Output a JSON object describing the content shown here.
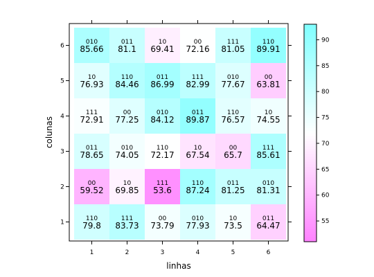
{
  "chart_data": {
    "type": "heatmap",
    "xlabel": "linhas",
    "ylabel": "colunas",
    "x_ticks": [
      "1",
      "2",
      "3",
      "4",
      "5",
      "6"
    ],
    "y_ticks": [
      "1",
      "2",
      "3",
      "4",
      "5",
      "6"
    ],
    "colorbar": {
      "range": [
        51,
        93
      ],
      "ticks": [
        55,
        60,
        65,
        70,
        75,
        80,
        85,
        90
      ],
      "low_color": "#ff80ff",
      "mid_color": "#ffffff",
      "high_color": "#80ffff",
      "mid_value": 72
    },
    "cells": [
      {
        "x": 1,
        "y": 6,
        "code": "010",
        "value": 85.66
      },
      {
        "x": 2,
        "y": 6,
        "code": "011",
        "value": 81.1
      },
      {
        "x": 3,
        "y": 6,
        "code": "10",
        "value": 69.41
      },
      {
        "x": 4,
        "y": 6,
        "code": "00",
        "value": 72.16
      },
      {
        "x": 5,
        "y": 6,
        "code": "111",
        "value": 81.05
      },
      {
        "x": 6,
        "y": 6,
        "code": "110",
        "value": 89.91
      },
      {
        "x": 1,
        "y": 5,
        "code": "10",
        "value": 76.93
      },
      {
        "x": 2,
        "y": 5,
        "code": "110",
        "value": 84.46
      },
      {
        "x": 3,
        "y": 5,
        "code": "011",
        "value": 86.99
      },
      {
        "x": 4,
        "y": 5,
        "code": "111",
        "value": 82.99
      },
      {
        "x": 5,
        "y": 5,
        "code": "010",
        "value": 77.67
      },
      {
        "x": 6,
        "y": 5,
        "code": "00",
        "value": 63.81
      },
      {
        "x": 1,
        "y": 4,
        "code": "111",
        "value": 72.91
      },
      {
        "x": 2,
        "y": 4,
        "code": "00",
        "value": 77.25
      },
      {
        "x": 3,
        "y": 4,
        "code": "010",
        "value": 84.12
      },
      {
        "x": 4,
        "y": 4,
        "code": "011",
        "value": 89.87
      },
      {
        "x": 5,
        "y": 4,
        "code": "110",
        "value": 76.57
      },
      {
        "x": 6,
        "y": 4,
        "code": "10",
        "value": 74.55
      },
      {
        "x": 1,
        "y": 3,
        "code": "011",
        "value": 78.65
      },
      {
        "x": 2,
        "y": 3,
        "code": "010",
        "value": 74.05
      },
      {
        "x": 3,
        "y": 3,
        "code": "110",
        "value": 72.17
      },
      {
        "x": 4,
        "y": 3,
        "code": "10",
        "value": 67.54
      },
      {
        "x": 5,
        "y": 3,
        "code": "00",
        "value": 65.7
      },
      {
        "x": 6,
        "y": 3,
        "code": "111",
        "value": 85.61
      },
      {
        "x": 1,
        "y": 2,
        "code": "00",
        "value": 59.52
      },
      {
        "x": 2,
        "y": 2,
        "code": "10",
        "value": 69.85
      },
      {
        "x": 3,
        "y": 2,
        "code": "111",
        "value": 53.6
      },
      {
        "x": 4,
        "y": 2,
        "code": "110",
        "value": 87.24
      },
      {
        "x": 5,
        "y": 2,
        "code": "011",
        "value": 81.25
      },
      {
        "x": 6,
        "y": 2,
        "code": "010",
        "value": 81.31
      },
      {
        "x": 1,
        "y": 1,
        "code": "110",
        "value": 79.8
      },
      {
        "x": 2,
        "y": 1,
        "code": "111",
        "value": 83.73
      },
      {
        "x": 3,
        "y": 1,
        "code": "00",
        "value": 73.79
      },
      {
        "x": 4,
        "y": 1,
        "code": "010",
        "value": 77.93
      },
      {
        "x": 5,
        "y": 1,
        "code": "10",
        "value": 73.5
      },
      {
        "x": 6,
        "y": 1,
        "code": "011",
        "value": 64.47
      }
    ]
  }
}
